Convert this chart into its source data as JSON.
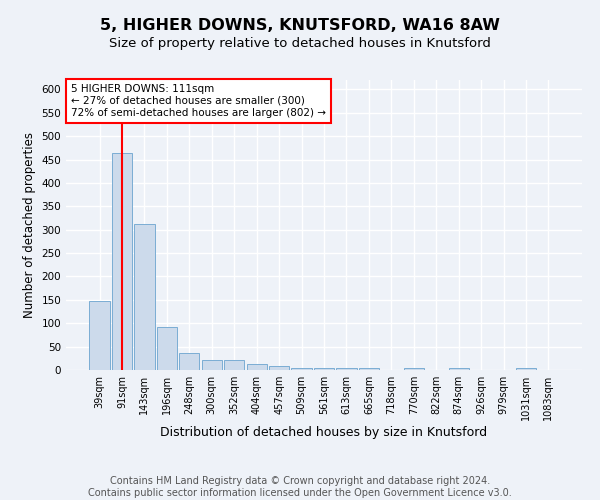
{
  "title": "5, HIGHER DOWNS, KNUTSFORD, WA16 8AW",
  "subtitle": "Size of property relative to detached houses in Knutsford",
  "xlabel": "Distribution of detached houses by size in Knutsford",
  "ylabel": "Number of detached properties",
  "bar_labels": [
    "39sqm",
    "91sqm",
    "143sqm",
    "196sqm",
    "248sqm",
    "300sqm",
    "352sqm",
    "404sqm",
    "457sqm",
    "509sqm",
    "561sqm",
    "613sqm",
    "665sqm",
    "718sqm",
    "770sqm",
    "822sqm",
    "874sqm",
    "926sqm",
    "979sqm",
    "1031sqm",
    "1083sqm"
  ],
  "bar_values": [
    148,
    465,
    312,
    93,
    37,
    22,
    22,
    12,
    8,
    5,
    5,
    4,
    5,
    0,
    5,
    0,
    5,
    0,
    0,
    5,
    0
  ],
  "bar_color": "#ccdaeb",
  "bar_edgecolor": "#7aadd4",
  "bar_linewidth": 0.7,
  "vline_x": 1,
  "vline_color": "red",
  "vline_linewidth": 1.5,
  "ylim": [
    0,
    620
  ],
  "yticks": [
    0,
    50,
    100,
    150,
    200,
    250,
    300,
    350,
    400,
    450,
    500,
    550,
    600
  ],
  "annotation_text": "5 HIGHER DOWNS: 111sqm\n← 27% of detached houses are smaller (300)\n72% of semi-detached houses are larger (802) →",
  "annotation_box_color": "white",
  "annotation_box_edgecolor": "red",
  "background_color": "#eef2f8",
  "grid_color": "white",
  "footer_text": "Contains HM Land Registry data © Crown copyright and database right 2024.\nContains public sector information licensed under the Open Government Licence v3.0.",
  "title_fontsize": 11.5,
  "subtitle_fontsize": 9.5,
  "xlabel_fontsize": 9,
  "ylabel_fontsize": 8.5,
  "footer_fontsize": 7,
  "annot_fontsize": 7.5,
  "tick_fontsize": 7,
  "ytick_fontsize": 7.5
}
